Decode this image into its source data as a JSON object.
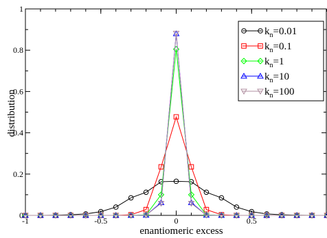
{
  "chart_data": {
    "type": "line",
    "xlabel": "enantiomeric excess",
    "ylabel": "distribution",
    "xlim": [
      -1,
      1
    ],
    "ylim": [
      0,
      1
    ],
    "xticks": [
      {
        "value": -1,
        "label": "-1"
      },
      {
        "value": -0.5,
        "label": "-0.5"
      },
      {
        "value": 0,
        "label": "0"
      },
      {
        "value": 0.5,
        "label": "0.5"
      }
    ],
    "yticks": [
      {
        "value": 0,
        "label": "0"
      },
      {
        "value": 0.2,
        "label": "0.2"
      },
      {
        "value": 0.4,
        "label": "0.4"
      },
      {
        "value": 0.6,
        "label": "0.6"
      },
      {
        "value": 0.8,
        "label": "0.8"
      },
      {
        "value": 1,
        "label": "1"
      }
    ],
    "grid": false,
    "legend_position": "top-right",
    "x": [
      -1,
      -0.9,
      -0.8,
      -0.7,
      -0.6,
      -0.5,
      -0.4,
      -0.3,
      -0.2,
      -0.1,
      0,
      0.1,
      0.2,
      0.3,
      0.4,
      0.5,
      0.6,
      0.7,
      0.8,
      0.9,
      1
    ],
    "series": [
      {
        "name_main": "k",
        "name_sub": "n",
        "name_rest": "=0.01",
        "color": "#000000",
        "marker": "circle",
        "values": [
          0,
          0,
          0.001,
          0.003,
          0.007,
          0.018,
          0.04,
          0.085,
          0.112,
          0.163,
          0.165,
          0.163,
          0.112,
          0.085,
          0.04,
          0.018,
          0.007,
          0.003,
          0.001,
          0,
          0
        ]
      },
      {
        "name_main": "k",
        "name_sub": "n",
        "name_rest": "=0.1",
        "color": "#ff0000",
        "marker": "square",
        "values": [
          0,
          0,
          0,
          0,
          0,
          0,
          0,
          0.003,
          0.028,
          0.235,
          0.477,
          0.235,
          0.028,
          0.003,
          0,
          0,
          0,
          0,
          0,
          0,
          0
        ]
      },
      {
        "name_main": "k",
        "name_sub": "n",
        "name_rest": "=1",
        "color": "#00ff00",
        "marker": "diamond",
        "values": [
          0,
          0,
          0,
          0,
          0,
          0,
          0,
          0,
          0.002,
          0.1,
          0.805,
          0.1,
          0.002,
          0,
          0,
          0,
          0,
          0,
          0,
          0,
          0
        ]
      },
      {
        "name_main": "k",
        "name_sub": "n",
        "name_rest": "=10",
        "color": "#0000ff",
        "marker": "triangle-up",
        "values": [
          0,
          0,
          0,
          0,
          0,
          0,
          0,
          0,
          0.001,
          0.062,
          0.88,
          0.062,
          0.001,
          0,
          0,
          0,
          0,
          0,
          0,
          0,
          0
        ]
      },
      {
        "name_main": "k",
        "name_sub": "n",
        "name_rest": "=100",
        "color": "#b08fa0",
        "marker": "triangle-down",
        "values": [
          0,
          0,
          0,
          0,
          0,
          0,
          0,
          0,
          0.001,
          0.058,
          0.882,
          0.058,
          0.001,
          0,
          0,
          0,
          0,
          0,
          0,
          0,
          0
        ]
      }
    ]
  }
}
